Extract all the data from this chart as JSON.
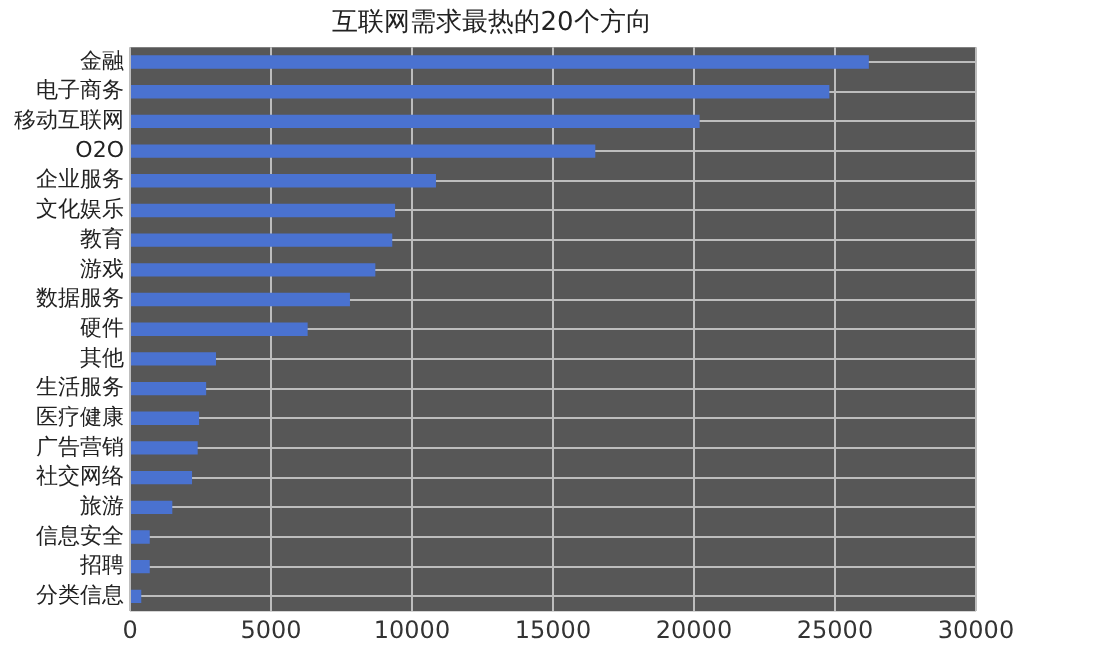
{
  "chart_data": {
    "type": "bar",
    "orientation": "horizontal",
    "title": "互联网需求最热的20个方向",
    "categories": [
      "金融",
      "电子商务",
      "移动互联网",
      "O2O",
      "企业服务",
      "文化娱乐",
      "教育",
      "游戏",
      "数据服务",
      "硬件",
      "其他",
      "生活服务",
      "医疗健康",
      "广告营销",
      "社交网络",
      "旅游",
      "信息安全",
      "招聘",
      "分类信息"
    ],
    "values": [
      26200,
      24800,
      20200,
      16500,
      10850,
      9400,
      9300,
      8700,
      7800,
      6300,
      3050,
      2700,
      2450,
      2400,
      2200,
      1500,
      700,
      700,
      400
    ],
    "color": "#4a72d0",
    "xlim": [
      0,
      30000
    ],
    "xticks": [
      0,
      5000,
      10000,
      15000,
      20000,
      25000,
      30000
    ],
    "grid": true
  }
}
